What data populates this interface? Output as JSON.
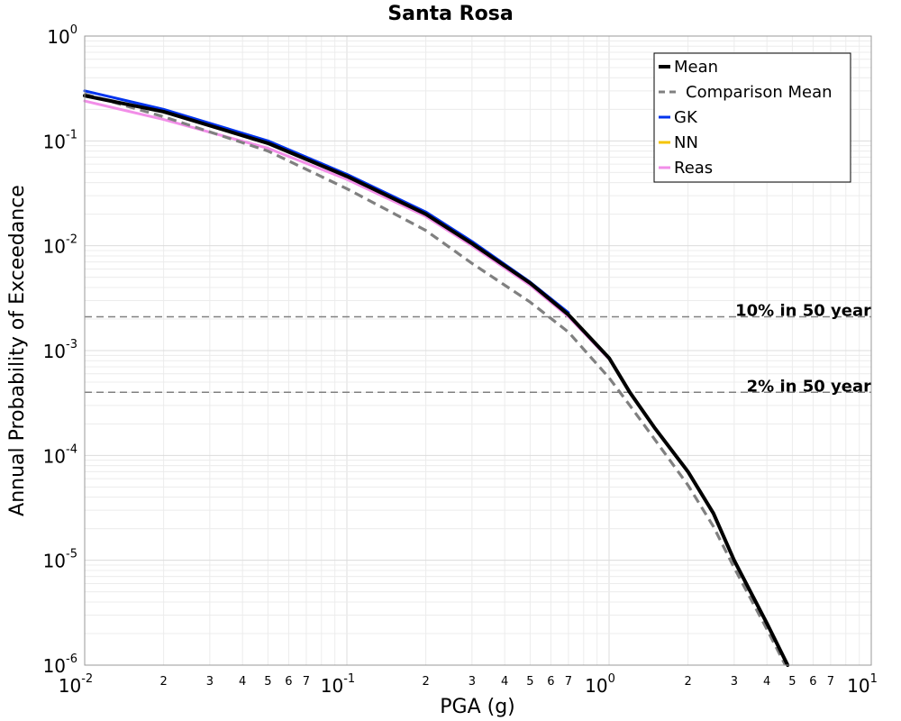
{
  "chart_data": {
    "type": "line",
    "title": "Santa Rosa",
    "xlabel": "PGA (g)",
    "ylabel": "Annual Probability of Exceedance",
    "xscale": "log",
    "yscale": "log",
    "xlim": [
      0.01,
      10
    ],
    "ylim": [
      1e-06,
      1
    ],
    "grid": true,
    "legend_position": "top-right",
    "x_tick_labels": [
      {
        "base": "10",
        "exp": "-2"
      },
      {
        "base": "10",
        "exp": "-1"
      },
      {
        "base": "10",
        "exp": "0"
      },
      {
        "base": "10",
        "exp": "1"
      }
    ],
    "y_tick_labels": [
      {
        "base": "10",
        "exp": "0"
      },
      {
        "base": "10",
        "exp": "-1"
      },
      {
        "base": "10",
        "exp": "-2"
      },
      {
        "base": "10",
        "exp": "-3"
      },
      {
        "base": "10",
        "exp": "-4"
      },
      {
        "base": "10",
        "exp": "-5"
      },
      {
        "base": "10",
        "exp": "-6"
      }
    ],
    "x_minor_tick_labels": [
      "2",
      "3",
      "4",
      "5",
      "6",
      "7"
    ],
    "reference_lines": [
      {
        "label": "10% in 50 year",
        "y": 0.0021
      },
      {
        "label": "2% in 50 year",
        "y": 0.0004
      }
    ],
    "series": [
      {
        "name": "Mean",
        "color": "#000000",
        "style": "solid",
        "x": [
          0.01,
          0.02,
          0.05,
          0.1,
          0.2,
          0.3,
          0.5,
          0.7,
          1.0,
          1.2,
          1.5,
          2.0,
          2.5,
          3.0,
          4.0,
          4.8
        ],
        "y": [
          0.27,
          0.19,
          0.095,
          0.046,
          0.02,
          0.0105,
          0.0044,
          0.0022,
          0.00085,
          0.0004,
          0.00018,
          7e-05,
          2.8e-05,
          1e-05,
          2.5e-06,
          1e-06
        ]
      },
      {
        "name": "Comparison Mean",
        "color": "#808080",
        "style": "dashed",
        "x": [
          0.01,
          0.02,
          0.05,
          0.1,
          0.2,
          0.3,
          0.5,
          0.7,
          1.0,
          1.2,
          1.5,
          2.0,
          2.5,
          3.0,
          4.0,
          4.7
        ],
        "y": [
          0.28,
          0.17,
          0.08,
          0.035,
          0.014,
          0.0068,
          0.0029,
          0.0015,
          0.00055,
          0.0003,
          0.00014,
          5.2e-05,
          2.1e-05,
          8.5e-06,
          2.2e-06,
          1e-06
        ]
      },
      {
        "name": "GK",
        "color": "#0033ee",
        "style": "solid",
        "x": [
          0.01,
          0.02,
          0.05,
          0.1,
          0.2,
          0.3,
          0.5,
          0.7
        ],
        "y": [
          0.3,
          0.2,
          0.1,
          0.048,
          0.021,
          0.011,
          0.0045,
          0.0023
        ]
      },
      {
        "name": "NN",
        "color": "#f5c400",
        "style": "solid",
        "x": [
          0.01,
          0.02,
          0.05,
          0.1,
          0.2,
          0.3,
          0.5,
          0.7
        ],
        "y": [
          0.27,
          0.19,
          0.095,
          0.046,
          0.02,
          0.0105,
          0.0044,
          0.0022
        ]
      },
      {
        "name": "Reas",
        "color": "#f28ee8",
        "style": "solid",
        "x": [
          0.01,
          0.02,
          0.05,
          0.1,
          0.2,
          0.3,
          0.5,
          0.7,
          1.0
        ],
        "y": [
          0.24,
          0.16,
          0.085,
          0.043,
          0.019,
          0.01,
          0.0042,
          0.0021,
          0.00083
        ]
      }
    ]
  }
}
